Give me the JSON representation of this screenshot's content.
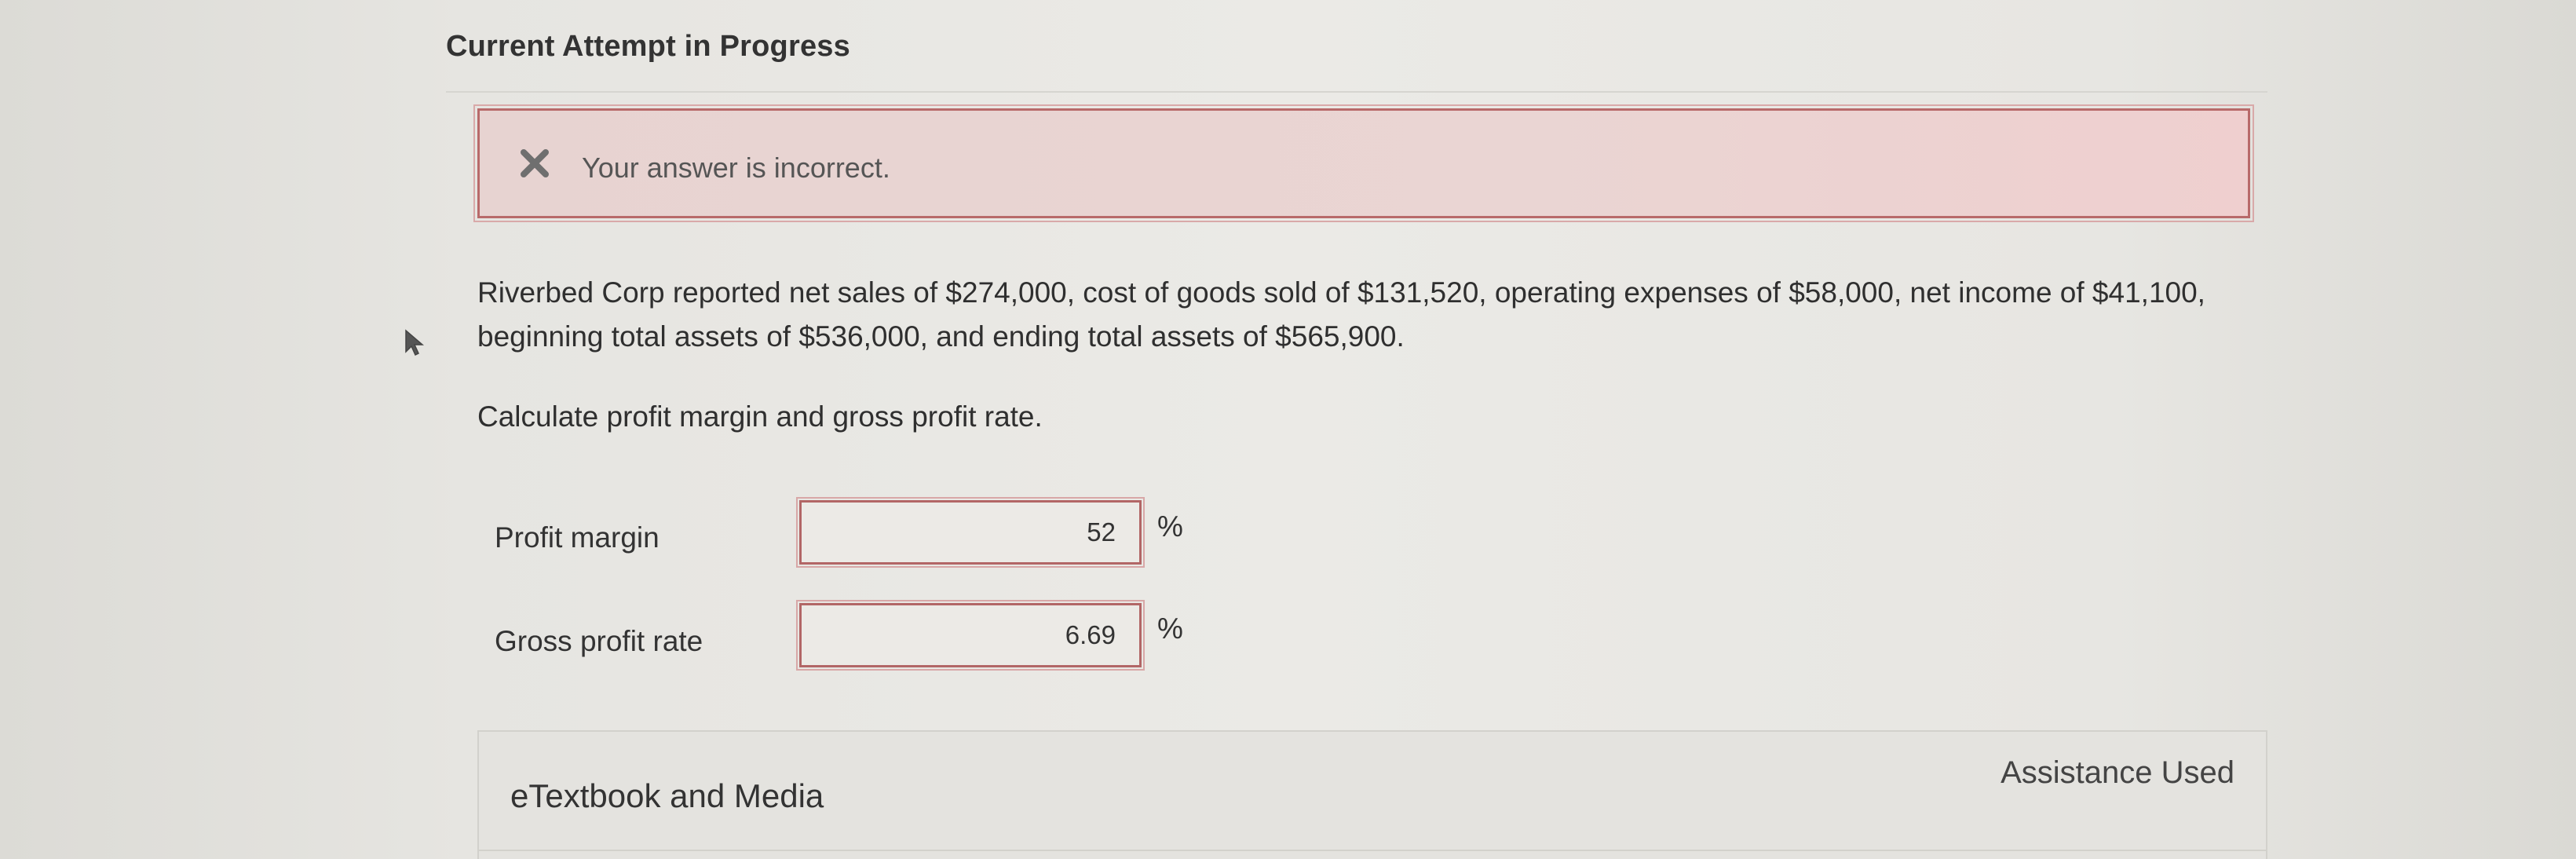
{
  "header": {
    "title": "Current Attempt in Progress"
  },
  "feedback": {
    "icon": "x-icon",
    "icon_color": "#6f6f6f",
    "message": "Your answer is incorrect.",
    "accent_color": "#b86a6a"
  },
  "problem": {
    "line1": "Riverbed Corp reported net sales of $274,000, cost of goods sold of $131,520, operating expenses of $58,000, net income of $41,100,",
    "line2": "beginning total assets of $536,000, and ending total assets of $565,900.",
    "instruction": "Calculate profit margin and gross profit rate."
  },
  "answers": [
    {
      "label": "Profit margin",
      "value": "52",
      "unit": "%"
    },
    {
      "label": "Gross profit rate",
      "value": "6.69",
      "unit": "%"
    }
  ],
  "resources": {
    "title": "eTextbook and Media",
    "assistance": "Assistance Used"
  }
}
